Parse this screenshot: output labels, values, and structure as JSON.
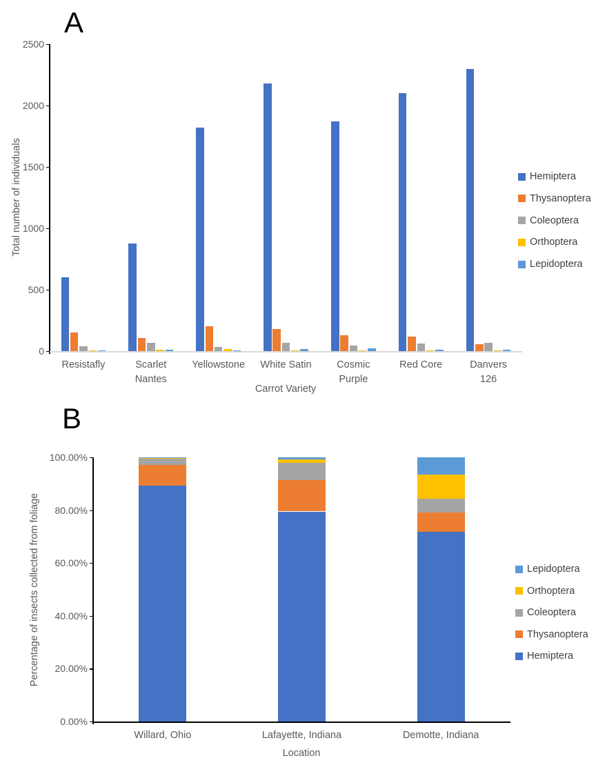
{
  "figure": {
    "background": "#ffffff",
    "panel_a_label": "A",
    "panel_b_label": "B"
  },
  "colors": {
    "hemiptera": "#4472C4",
    "thysanoptera": "#ED7D31",
    "coleoptera": "#A5A5A5",
    "orthoptera": "#FFC000",
    "lepidoptera": "#5B9BD5",
    "axis_text": "#595959",
    "legend_text": "#404040",
    "axis_line": "#000000",
    "panel_a_baseline": "#D9D9D9"
  },
  "chart_data": [
    {
      "id": "panel-a",
      "type": "bar",
      "panel_label": "A",
      "title": "",
      "xlabel": "Carrot Variety",
      "ylabel": "Total number of individuals",
      "ylim": [
        0,
        2500
      ],
      "grid": false,
      "legend_position": "right",
      "categories": [
        "Resistafly",
        "Scarlet Nantes",
        "Yellowstone",
        "White Satin",
        "Cosmic Purple",
        "Red Core",
        "Danvers 126"
      ],
      "categories_lines": [
        [
          "Resistafly"
        ],
        [
          "Scarlet",
          "Nantes"
        ],
        [
          "Yellowstone"
        ],
        [
          "White Satin"
        ],
        [
          "Cosmic",
          "Purple"
        ],
        [
          "Red Core"
        ],
        [
          "Danvers",
          "126"
        ]
      ],
      "y_ticks": [
        {
          "value": 0,
          "label": "0"
        },
        {
          "value": 500,
          "label": "500"
        },
        {
          "value": 1000,
          "label": "1000"
        },
        {
          "value": 1500,
          "label": "1500"
        },
        {
          "value": 2000,
          "label": "2000"
        },
        {
          "value": 2500,
          "label": "2500"
        }
      ],
      "series": [
        {
          "name": "Hemiptera",
          "color": "#4472C4",
          "values": [
            600,
            875,
            1820,
            2180,
            1870,
            2100,
            2300
          ]
        },
        {
          "name": "Thysanoptera",
          "color": "#ED7D31",
          "values": [
            150,
            105,
            200,
            180,
            130,
            120,
            55
          ]
        },
        {
          "name": "Coleoptera",
          "color": "#A5A5A5",
          "values": [
            40,
            65,
            35,
            65,
            45,
            60,
            70
          ]
        },
        {
          "name": "Orthoptera",
          "color": "#FFC000",
          "values": [
            3,
            10,
            15,
            5,
            8,
            7,
            7
          ]
        },
        {
          "name": "Lepidoptera",
          "color": "#5B9BD5",
          "values": [
            5,
            10,
            3,
            15,
            20,
            10,
            12
          ]
        }
      ]
    },
    {
      "id": "panel-b",
      "type": "stacked-bar-100",
      "panel_label": "B",
      "title": "",
      "xlabel": "Location",
      "ylabel": "Percentage of insects collected from foliage",
      "ylim": [
        0,
        100
      ],
      "grid": false,
      "legend_position": "right",
      "legend_reverse": true,
      "categories": [
        "Willard, Ohio",
        "Lafayette, Indiana",
        "Demotte, Indiana"
      ],
      "categories_lines": [
        [
          "Willard, Ohio"
        ],
        [
          "Lafayette, Indiana"
        ],
        [
          "Demotte, Indiana"
        ]
      ],
      "y_ticks": [
        {
          "value": 0,
          "label": "0.00%"
        },
        {
          "value": 20,
          "label": "20.00%"
        },
        {
          "value": 40,
          "label": "40.00%"
        },
        {
          "value": 60,
          "label": "60.00%"
        },
        {
          "value": 80,
          "label": "80.00%"
        },
        {
          "value": 100,
          "label": "100.00%"
        }
      ],
      "series": [
        {
          "name": "Hemiptera",
          "color": "#4472C4",
          "values": [
            89.3,
            79.5,
            71.7
          ]
        },
        {
          "name": "Thysanoptera",
          "color": "#ED7D31",
          "values": [
            7.9,
            11.9,
            7.4
          ]
        },
        {
          "name": "Coleoptera",
          "color": "#A5A5A5",
          "values": [
            2.4,
            6.5,
            5.2
          ]
        },
        {
          "name": "Orthoptera",
          "color": "#FFC000",
          "values": [
            0.2,
            1.3,
            9.1
          ]
        },
        {
          "name": "Lepidoptera",
          "color": "#5B9BD5",
          "values": [
            0.2,
            0.8,
            6.6
          ]
        }
      ]
    }
  ]
}
